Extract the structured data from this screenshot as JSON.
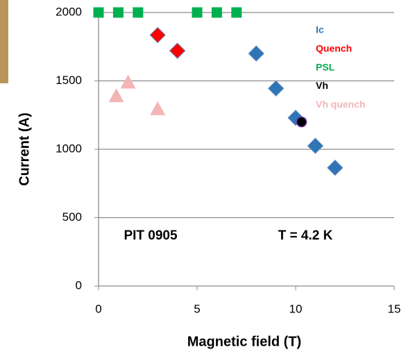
{
  "chart_data": {
    "type": "scatter",
    "xlabel": "Magnetic field (T)",
    "ylabel": "Current (A)",
    "annotations": [
      "PIT 0905",
      "T = 4.2 K"
    ],
    "xlim": [
      0,
      15
    ],
    "xticks": [
      0,
      5,
      10,
      15
    ],
    "ylim": [
      0,
      2000
    ],
    "yticks": [
      0,
      500,
      1000,
      1500,
      2000
    ],
    "grid": true,
    "legend": "upper right",
    "series": [
      {
        "name": "Ic",
        "color": "#2e75b6",
        "marker": "diamond",
        "x": [
          4,
          8,
          9,
          10,
          11,
          12
        ],
        "values": [
          1720,
          1700,
          1445,
          1230,
          1025,
          865
        ]
      },
      {
        "name": "Quench",
        "color": "#ff0000",
        "marker": "diamond",
        "x": [
          3,
          4
        ],
        "values": [
          1835,
          1720
        ]
      },
      {
        "name": "PSL",
        "color": "#00b050",
        "marker": "square",
        "x": [
          0,
          1,
          2,
          5,
          6,
          7
        ],
        "values": [
          2000,
          2000,
          2000,
          2000,
          2000,
          2000
        ]
      },
      {
        "name": "Vh",
        "color": "#000000",
        "marker": "circle",
        "x": [
          10.3
        ],
        "values": [
          1200
        ]
      },
      {
        "name": "Vh quench",
        "color": "#f4b4b4",
        "marker": "triangle",
        "x": [
          0.9,
          1.5,
          3
        ],
        "values": [
          1390,
          1490,
          1295
        ]
      }
    ]
  }
}
